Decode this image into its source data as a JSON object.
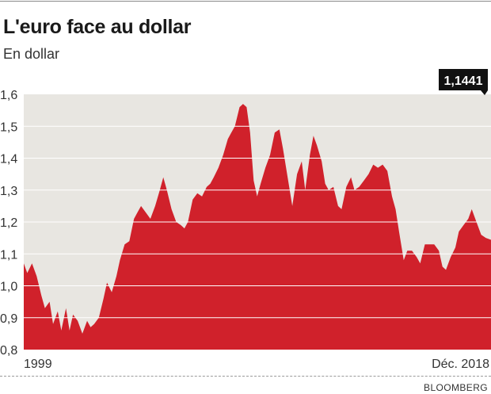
{
  "header": {
    "title": "L'euro face au dollar",
    "subtitle": "En dollar"
  },
  "source": "BLOOMBERG",
  "colors": {
    "background": "#e8e6e1",
    "area": "#d0212b",
    "gridline": "#ffffff",
    "last_label_bg": "#111111"
  },
  "chart_data": {
    "type": "area",
    "title": "L'euro face au dollar",
    "ylabel": "En dollar",
    "ylim": [
      0.8,
      1.6
    ],
    "yticks": [
      0.8,
      0.9,
      1.0,
      1.1,
      1.2,
      1.3,
      1.4,
      1.5,
      1.6
    ],
    "ytick_labels": [
      "0,8",
      "0,9",
      "1,0",
      "1,1",
      "1,2",
      "1,3",
      "1,4",
      "1,5",
      "1,6"
    ],
    "xlim": [
      1999.0,
      2018.92
    ],
    "x_labels": [
      {
        "x": 1999.0,
        "label": "1999"
      },
      {
        "x": 2018.92,
        "label": "Déc. 2018"
      }
    ],
    "grid": true,
    "last_value_label": "1,1441",
    "x": [
      1999.0,
      1999.15,
      1999.35,
      1999.55,
      1999.75,
      1999.9,
      2000.1,
      2000.25,
      2000.45,
      2000.6,
      2000.8,
      2000.95,
      2001.1,
      2001.3,
      2001.5,
      2001.7,
      2001.85,
      2002.0,
      2002.2,
      2002.4,
      2002.55,
      2002.75,
      2002.95,
      2003.1,
      2003.3,
      2003.5,
      2003.7,
      2003.85,
      2004.0,
      2004.2,
      2004.4,
      2004.6,
      2004.8,
      2004.95,
      2005.1,
      2005.3,
      2005.5,
      2005.7,
      2005.85,
      2006.0,
      2006.2,
      2006.4,
      2006.6,
      2006.8,
      2006.95,
      2007.1,
      2007.3,
      2007.5,
      2007.7,
      2007.85,
      2008.0,
      2008.2,
      2008.35,
      2008.5,
      2008.65,
      2008.8,
      2008.95,
      2009.1,
      2009.3,
      2009.5,
      2009.7,
      2009.9,
      2010.05,
      2010.25,
      2010.45,
      2010.65,
      2010.85,
      2011.0,
      2011.2,
      2011.35,
      2011.5,
      2011.7,
      2011.85,
      2012.0,
      2012.2,
      2012.4,
      2012.55,
      2012.75,
      2012.95,
      2013.1,
      2013.3,
      2013.5,
      2013.7,
      2013.9,
      2014.1,
      2014.3,
      2014.5,
      2014.7,
      2014.85,
      2015.0,
      2015.2,
      2015.35,
      2015.55,
      2015.75,
      2015.9,
      2016.1,
      2016.3,
      2016.5,
      2016.7,
      2016.85,
      2017.0,
      2017.2,
      2017.4,
      2017.55,
      2017.75,
      2017.95,
      2018.1,
      2018.3,
      2018.5,
      2018.7,
      2018.92
    ],
    "values": [
      1.07,
      1.04,
      1.07,
      1.03,
      0.97,
      0.93,
      0.95,
      0.88,
      0.92,
      0.86,
      0.93,
      0.86,
      0.91,
      0.89,
      0.85,
      0.89,
      0.87,
      0.88,
      0.9,
      0.96,
      1.01,
      0.98,
      1.03,
      1.08,
      1.13,
      1.14,
      1.21,
      1.23,
      1.25,
      1.23,
      1.21,
      1.25,
      1.3,
      1.34,
      1.3,
      1.24,
      1.2,
      1.19,
      1.18,
      1.2,
      1.27,
      1.29,
      1.28,
      1.31,
      1.32,
      1.34,
      1.37,
      1.41,
      1.46,
      1.48,
      1.5,
      1.56,
      1.57,
      1.56,
      1.48,
      1.33,
      1.28,
      1.32,
      1.37,
      1.41,
      1.48,
      1.49,
      1.43,
      1.34,
      1.25,
      1.35,
      1.39,
      1.3,
      1.41,
      1.47,
      1.44,
      1.39,
      1.32,
      1.3,
      1.31,
      1.25,
      1.24,
      1.31,
      1.34,
      1.3,
      1.31,
      1.33,
      1.35,
      1.38,
      1.37,
      1.38,
      1.36,
      1.28,
      1.24,
      1.17,
      1.08,
      1.11,
      1.11,
      1.09,
      1.07,
      1.13,
      1.13,
      1.13,
      1.11,
      1.06,
      1.05,
      1.09,
      1.12,
      1.17,
      1.19,
      1.21,
      1.24,
      1.2,
      1.16,
      1.15,
      1.1441
    ]
  }
}
